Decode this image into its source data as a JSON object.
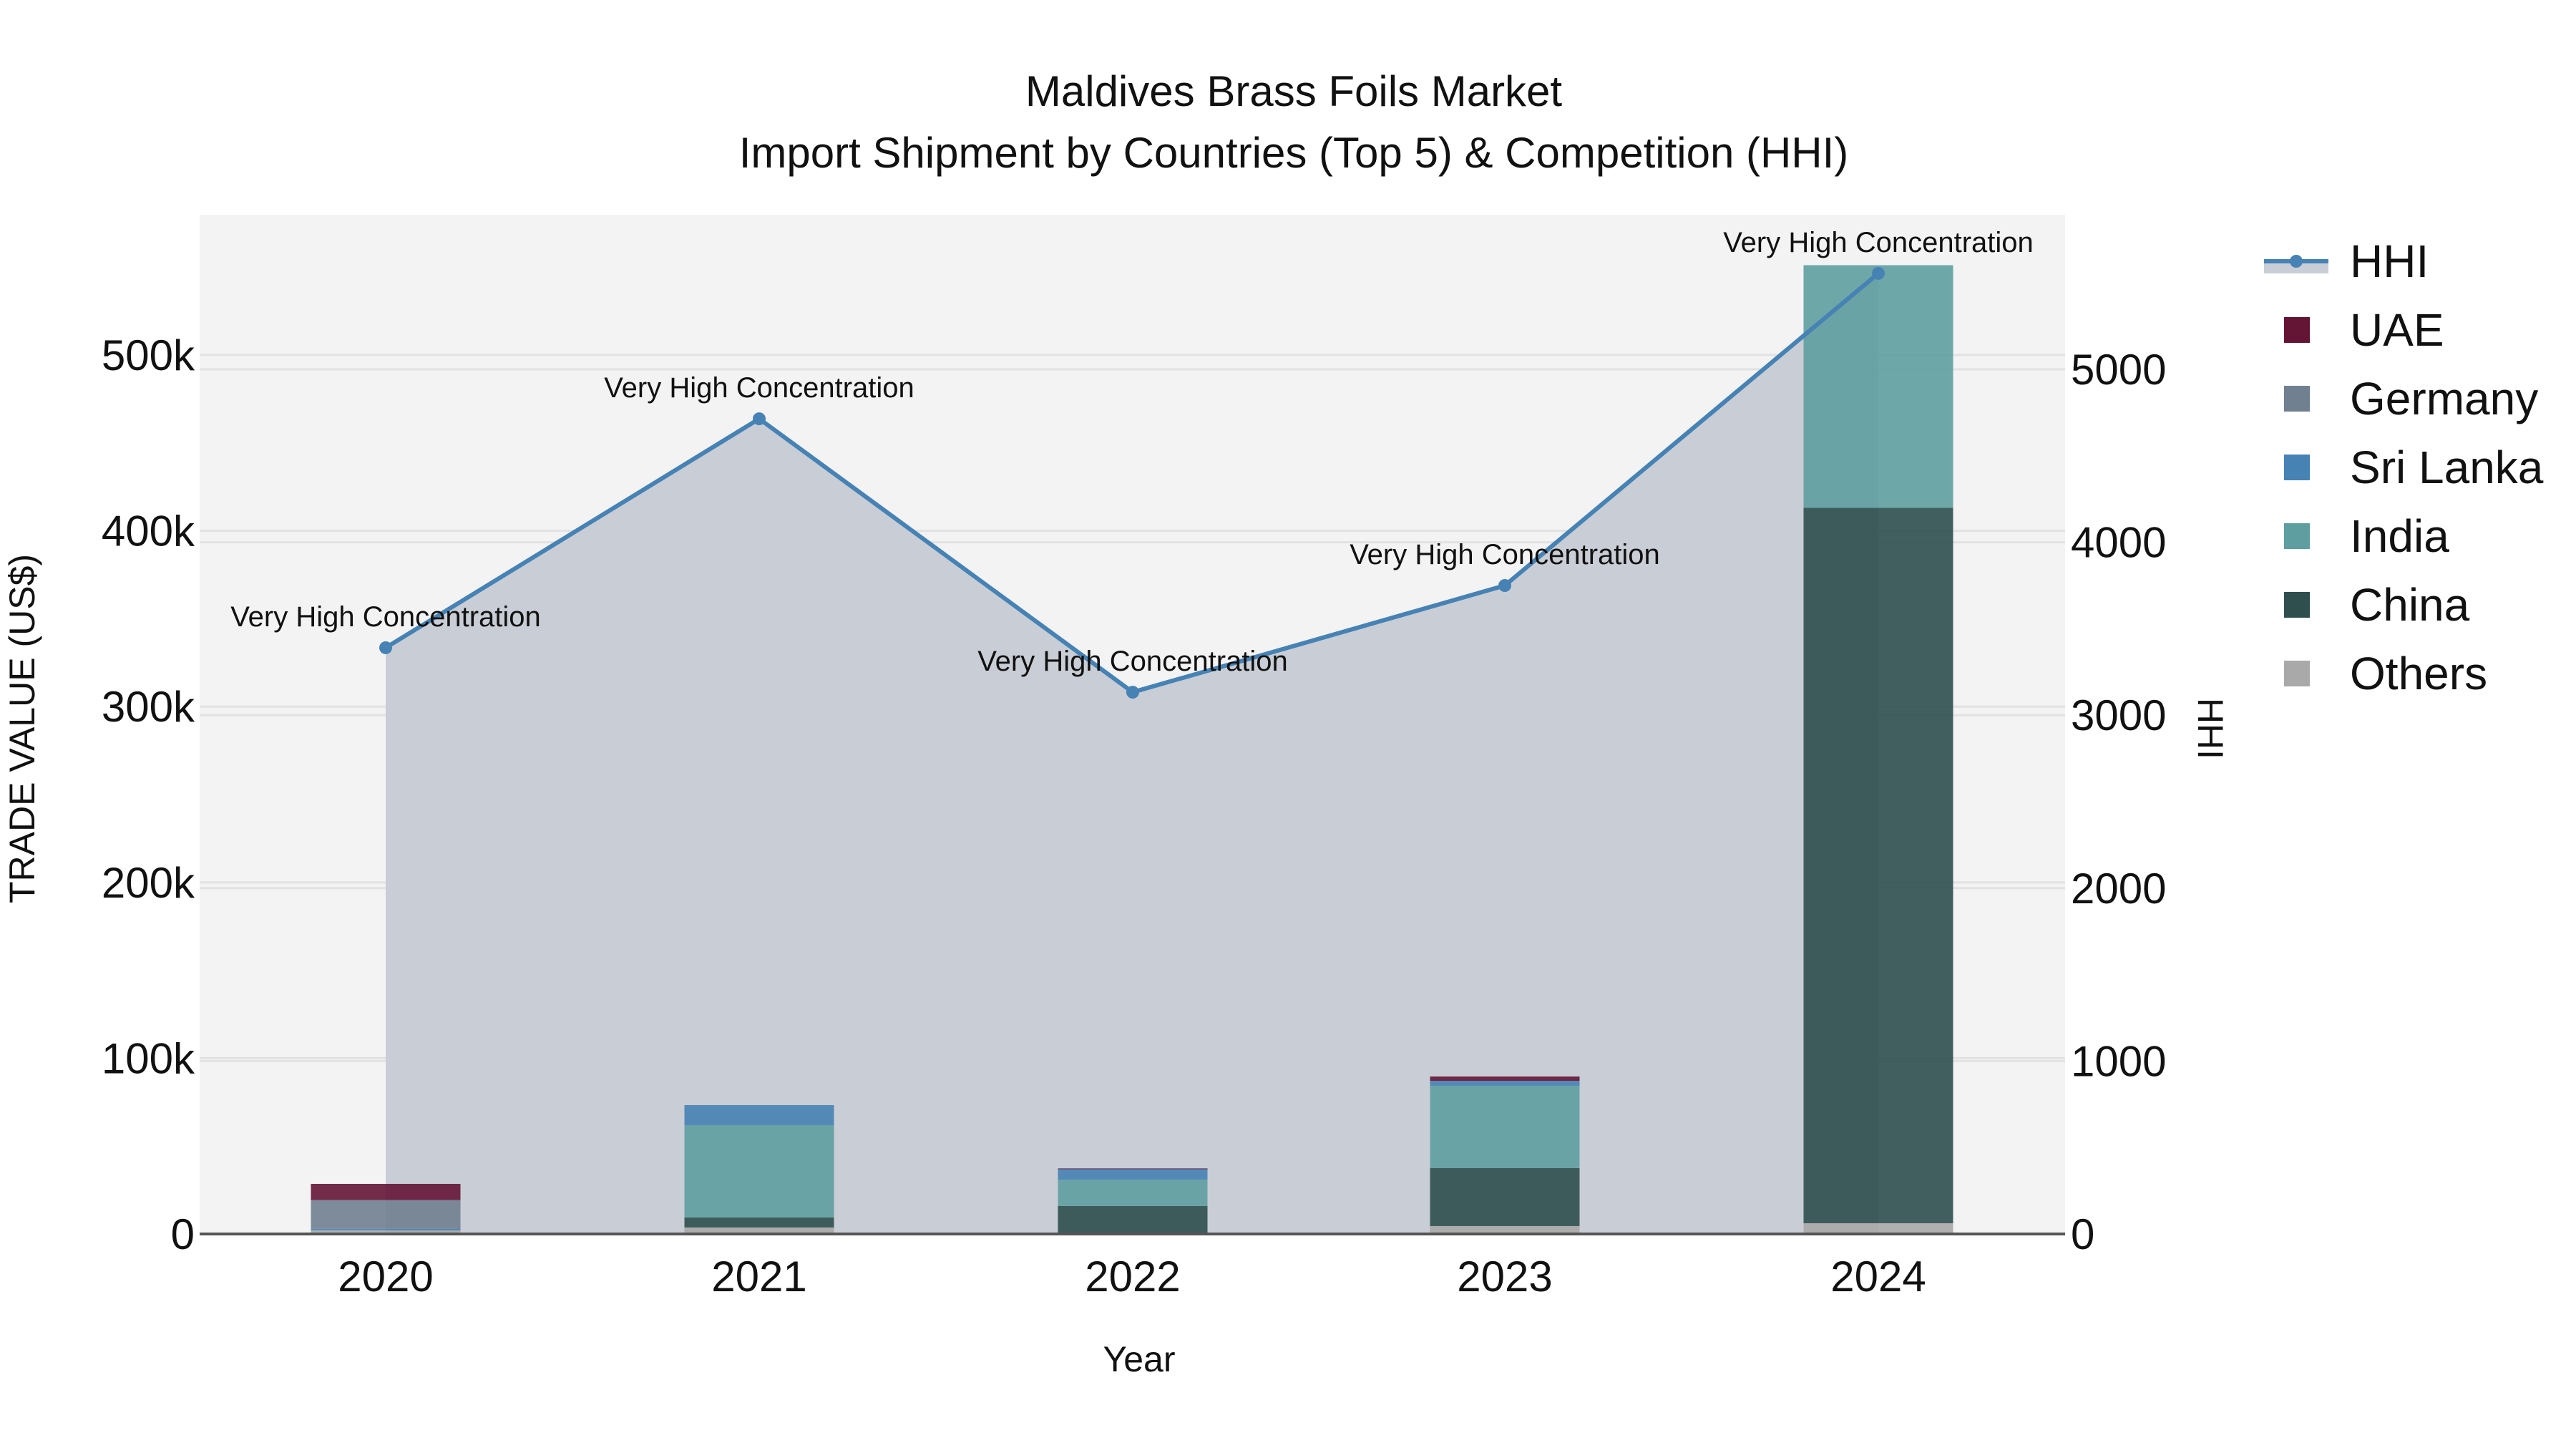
{
  "title": {
    "line1": "Maldives Brass Foils Market",
    "line2": "Import Shipment by Countries (Top 5) & Competition (HHI)"
  },
  "colors": {
    "UAE": "#641536",
    "Germany": "#708090",
    "Sri Lanka": "#4682B4",
    "India": "#5F9EA0",
    "China": "#2F4F4F",
    "Others": "#A9A9A9",
    "HHI_line": "#4682B4",
    "HHI_fill": "#C9CDD5",
    "plot_bg": "#F3F3F3",
    "grid": "#E2E2E2",
    "axis_line": "#555555"
  },
  "legend": {
    "items": [
      {
        "label": "HHI",
        "type": "line"
      },
      {
        "label": "UAE",
        "type": "box"
      },
      {
        "label": "Germany",
        "type": "box"
      },
      {
        "label": "Sri Lanka",
        "type": "box"
      },
      {
        "label": "India",
        "type": "box"
      },
      {
        "label": "China",
        "type": "box"
      },
      {
        "label": "Others",
        "type": "box"
      }
    ]
  },
  "chart_data": {
    "type": "bar",
    "subtype": "stacked bar with line overlay (secondary axis)",
    "title": "Maldives Brass Foils Market — Import Shipment by Countries (Top 5) & Competition (HHI)",
    "xlabel": "Year",
    "ylabel": "TRADE VALUE (US$)",
    "y2label": "HHI",
    "categories": [
      "2020",
      "2021",
      "2022",
      "2023",
      "2024"
    ],
    "series": [
      {
        "name": "Others",
        "axis": "y",
        "values": [
          2000,
          3700,
          300,
          4500,
          6100
        ]
      },
      {
        "name": "China",
        "axis": "y",
        "values": [
          0,
          5700,
          15600,
          33000,
          407000
        ]
      },
      {
        "name": "India",
        "axis": "y",
        "values": [
          0,
          52500,
          15000,
          46800,
          138000
        ]
      },
      {
        "name": "Sri Lanka",
        "axis": "y",
        "values": [
          1000,
          11400,
          6200,
          2800,
          0
        ]
      },
      {
        "name": "Germany",
        "axis": "y",
        "values": [
          16300,
          0,
          0,
          0,
          0
        ]
      },
      {
        "name": "UAE",
        "axis": "y",
        "values": [
          9200,
          0,
          200,
          2500,
          0
        ]
      },
      {
        "name": "HHI",
        "axis": "y2",
        "type": "line+area",
        "values": [
          3390,
          4714,
          3133,
          3750,
          5555
        ]
      }
    ],
    "annotations": [
      {
        "x": "2020",
        "text": "Very High Concentration"
      },
      {
        "x": "2021",
        "text": "Very High Concentration"
      },
      {
        "x": "2022",
        "text": "Very High Concentration"
      },
      {
        "x": "2023",
        "text": "Very High Concentration"
      },
      {
        "x": "2024",
        "text": "Very High Concentration"
      }
    ],
    "yticks": [
      "0",
      "100k",
      "200k",
      "300k",
      "400k",
      "500k"
    ],
    "y2ticks": [
      "0",
      "1000",
      "2000",
      "3000",
      "4000",
      "5000"
    ],
    "ylim": [
      0,
      580000
    ],
    "y2lim": [
      0,
      7136
    ],
    "grid": true,
    "legend_position": "right"
  }
}
